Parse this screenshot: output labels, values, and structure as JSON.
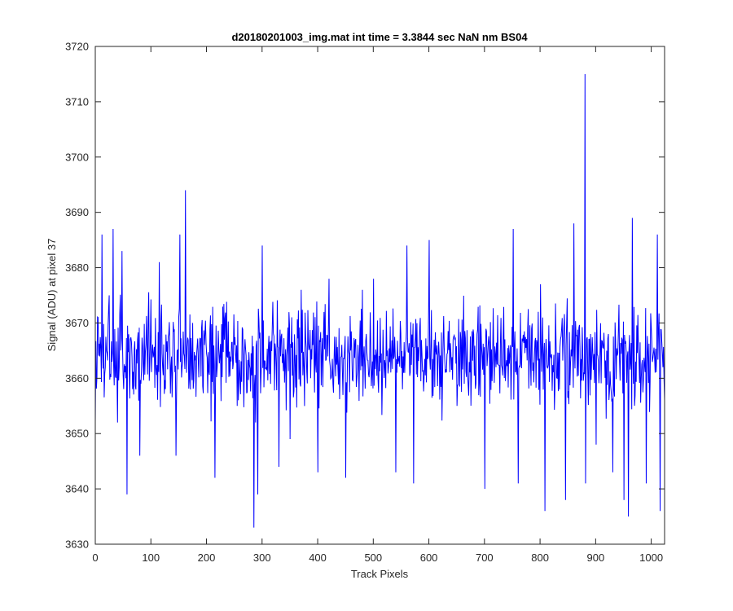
{
  "chart_data": {
    "type": "line",
    "title": "d20180201003_img.mat int time = 3.3844 sec  NaN nm BS04",
    "xlabel": "Track Pixels",
    "ylabel": "Signal (ADU) at pixel 37",
    "xlim": [
      0,
      1024
    ],
    "ylim": [
      3630,
      3720
    ],
    "xticks": [
      0,
      100,
      200,
      300,
      400,
      500,
      600,
      700,
      800,
      900,
      1000
    ],
    "yticks": [
      3630,
      3640,
      3650,
      3660,
      3670,
      3680,
      3690,
      3700,
      3710,
      3720
    ],
    "grid": false,
    "legend": "none",
    "series": [
      {
        "color": "#0000ff",
        "baseline": 3664,
        "noise_amplitude": 8,
        "n_points": 1024,
        "x": [
          0,
          5,
          12,
          18,
          25,
          32,
          40,
          48,
          55,
          57,
          80,
          115,
          145,
          152,
          160,
          162,
          175,
          215,
          255,
          285,
          288,
          292,
          300,
          330,
          350,
          370,
          400,
          420,
          450,
          480,
          500,
          540,
          560,
          572,
          600,
          650,
          700,
          720,
          751,
          760,
          800,
          808,
          830,
          845,
          860,
          880,
          881,
          890,
          900,
          930,
          950,
          958,
          965,
          990,
          1010,
          1015,
          1020,
          1024
        ],
        "values": [
          3652,
          3671,
          3686,
          3662,
          3675,
          3687,
          3652,
          3683,
          3660,
          3639,
          3646,
          3681,
          3646,
          3686,
          3664,
          3694,
          3670,
          3642,
          3655,
          3633,
          3652,
          3639,
          3684,
          3644,
          3649,
          3676,
          3643,
          3678,
          3642,
          3676,
          3678,
          3643,
          3684,
          3641,
          3685,
          3655,
          3640,
          3662,
          3687,
          3641,
          3677,
          3636,
          3660,
          3638,
          3688,
          3715,
          3641,
          3668,
          3648,
          3643,
          3638,
          3635,
          3689,
          3641,
          3686,
          3636,
          3662,
          3656
        ]
      }
    ]
  }
}
